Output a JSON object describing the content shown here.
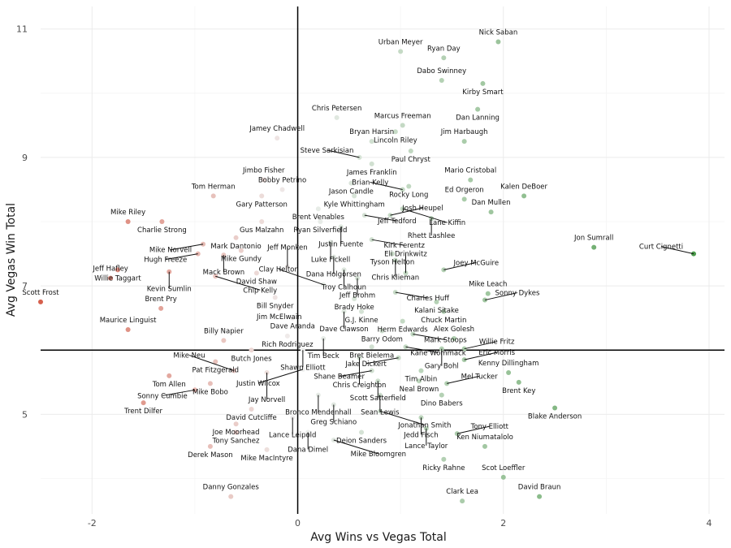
{
  "chart_data": {
    "type": "scatter",
    "xlabel": "Avg Wins vs Vegas Total",
    "ylabel": "Avg Vegas Win Total",
    "xlim": [
      -2.5,
      4.15
    ],
    "ylim": [
      3.45,
      11.35
    ],
    "x_ticks": [
      -2,
      0,
      2,
      4
    ],
    "x_tick_labels": [
      "-2",
      "0",
      "2",
      "4"
    ],
    "y_ticks": [
      5,
      7,
      9,
      11
    ],
    "y_tick_labels": [
      "5",
      "7",
      "9",
      "11"
    ],
    "reference_lines": {
      "x": 0,
      "y": 6
    },
    "grid": true,
    "color_scale": {
      "negative": "#d6604d",
      "neutral": "#f0f0f0",
      "positive": "#4a9a4a"
    },
    "points": [
      {
        "name": "Nick Saban",
        "x": 1.95,
        "y": 10.8
      },
      {
        "name": "Urban Meyer",
        "x": 1.0,
        "y": 10.65
      },
      {
        "name": "Ryan Day",
        "x": 1.42,
        "y": 10.55
      },
      {
        "name": "Dabo Swinney",
        "x": 1.4,
        "y": 10.2
      },
      {
        "name": "Kirby Smart",
        "x": 1.8,
        "y": 10.15
      },
      {
        "name": "Dan Lanning",
        "x": 1.75,
        "y": 9.75
      },
      {
        "name": "Chris Petersen",
        "x": 0.38,
        "y": 9.62
      },
      {
        "name": "Marcus Freeman",
        "x": 1.02,
        "y": 9.5
      },
      {
        "name": "Lincoln Riley",
        "x": 0.95,
        "y": 9.4
      },
      {
        "name": "Jim Harbaugh",
        "x": 1.62,
        "y": 9.25
      },
      {
        "name": "Jimbo Fisher",
        "x": -0.33,
        "y": 8.65
      },
      {
        "name": "Jamey Chadwell",
        "x": -0.2,
        "y": 9.3
      },
      {
        "name": "Bryan Harsin",
        "x": 0.72,
        "y": 9.25
      },
      {
        "name": "Paul Chryst",
        "x": 1.1,
        "y": 9.1
      },
      {
        "name": "Steve Sarkisian",
        "x": 0.6,
        "y": 9.0
      },
      {
        "name": "James Franklin",
        "x": 0.72,
        "y": 8.9
      },
      {
        "name": "Mario Cristobal",
        "x": 1.68,
        "y": 8.65
      },
      {
        "name": "Bobby Petrino",
        "x": -0.15,
        "y": 8.5
      },
      {
        "name": "Jason Candle",
        "x": 0.52,
        "y": 8.6
      },
      {
        "name": "Rocky Long",
        "x": 1.08,
        "y": 8.55
      },
      {
        "name": "Gary Patterson",
        "x": -0.35,
        "y": 8.4
      },
      {
        "name": "Kyle Whittingham",
        "x": 0.55,
        "y": 8.4
      },
      {
        "name": "Brian Kelly",
        "x": 1.02,
        "y": 8.5
      },
      {
        "name": "Ed Orgeron",
        "x": 1.62,
        "y": 8.35
      },
      {
        "name": "Kalen DeBoer",
        "x": 2.2,
        "y": 8.4
      },
      {
        "name": "Tom Herman",
        "x": -0.82,
        "y": 8.4
      },
      {
        "name": "Brent Venables",
        "x": 0.2,
        "y": 8.2
      },
      {
        "name": "Jeff Tedford",
        "x": 0.65,
        "y": 8.1
      },
      {
        "name": "Dan Mullen",
        "x": 1.88,
        "y": 8.15
      },
      {
        "name": "Lane Kiffin",
        "x": 1.02,
        "y": 8.2
      },
      {
        "name": "Mike Riley",
        "x": -1.65,
        "y": 8.0
      },
      {
        "name": "Charlie Strong",
        "x": -1.32,
        "y": 8.0
      },
      {
        "name": "Gus Malzahn",
        "x": -0.35,
        "y": 8.0
      },
      {
        "name": "Ryan Silverfield",
        "x": 0.22,
        "y": 8.0
      },
      {
        "name": "Justin Fuente",
        "x": 0.42,
        "y": 7.92
      },
      {
        "name": "Josh Heupel",
        "x": 0.9,
        "y": 8.1
      },
      {
        "name": "Rhett Lashlee",
        "x": 1.3,
        "y": 8.05
      },
      {
        "name": "Mark Dantonio",
        "x": -0.6,
        "y": 7.75
      },
      {
        "name": "Mike Norvell",
        "x": -0.92,
        "y": 7.65
      },
      {
        "name": "Kirk Ferentz",
        "x": 0.72,
        "y": 7.72
      },
      {
        "name": "Luke Fickell",
        "x": 0.32,
        "y": 7.68
      },
      {
        "name": "Jon Sumrall",
        "x": 2.88,
        "y": 7.6
      },
      {
        "name": "Curt Cignetti",
        "x": 3.85,
        "y": 7.5
      },
      {
        "name": "Mike Gundy",
        "x": -0.55,
        "y": 7.55
      },
      {
        "name": "Tyson Helton",
        "x": 0.92,
        "y": 7.5
      },
      {
        "name": "Hugh Freeze",
        "x": -0.97,
        "y": 7.5
      },
      {
        "name": "Mack Brown",
        "x": -0.72,
        "y": 7.48
      },
      {
        "name": "Dana Holgorsen",
        "x": 0.35,
        "y": 7.45
      },
      {
        "name": "Chris Klieman",
        "x": 0.95,
        "y": 7.4
      },
      {
        "name": "Willie Taggart",
        "x": -1.75,
        "y": 7.25
      },
      {
        "name": "Jeff Monken",
        "x": -0.1,
        "y": 7.3
      },
      {
        "name": "Troy Calhoun",
        "x": 0.45,
        "y": 7.25
      },
      {
        "name": "Eli Drinkwitz",
        "x": 1.05,
        "y": 7.2
      },
      {
        "name": "Joey McGuire",
        "x": 1.42,
        "y": 7.25
      },
      {
        "name": "Kevin Sumlin",
        "x": -1.25,
        "y": 7.22
      },
      {
        "name": "David Shaw",
        "x": -0.4,
        "y": 7.2
      },
      {
        "name": "Chip Kelly",
        "x": -0.8,
        "y": 7.15
      },
      {
        "name": "Jeff Hafley",
        "x": -1.82,
        "y": 7.12
      },
      {
        "name": "Jeff Brohm",
        "x": 0.58,
        "y": 7.12
      },
      {
        "name": "Clay Helton",
        "x": 0.25,
        "y": 7.02
      },
      {
        "name": "Charles Huff",
        "x": 0.95,
        "y": 6.9
      },
      {
        "name": "Mike Leach",
        "x": 1.85,
        "y": 6.88
      },
      {
        "name": "Scott Frost",
        "x": -2.5,
        "y": 6.75
      },
      {
        "name": "Bill Snyder",
        "x": -0.22,
        "y": 6.82
      },
      {
        "name": "Brady Hoke",
        "x": 0.55,
        "y": 6.8
      },
      {
        "name": "Kalani Sitake",
        "x": 1.35,
        "y": 6.75
      },
      {
        "name": "Sonny Dykes",
        "x": 1.82,
        "y": 6.78
      },
      {
        "name": "Jim McElwain",
        "x": -0.18,
        "y": 6.65
      },
      {
        "name": "Brent Pry",
        "x": -1.33,
        "y": 6.65
      },
      {
        "name": "G.J. Kinne",
        "x": 0.62,
        "y": 6.6
      },
      {
        "name": "Chuck Martin",
        "x": 1.42,
        "y": 6.6
      },
      {
        "name": "Dave Aranda",
        "x": -0.05,
        "y": 6.5
      },
      {
        "name": "Dave Clawson",
        "x": 0.45,
        "y": 6.6
      },
      {
        "name": "Herm Edwards",
        "x": 1.02,
        "y": 6.45
      },
      {
        "name": "Maurice Linguist",
        "x": -1.65,
        "y": 6.32
      },
      {
        "name": "Barry Odom",
        "x": 0.82,
        "y": 6.3
      },
      {
        "name": "Mark Stoops",
        "x": 1.12,
        "y": 6.25
      },
      {
        "name": "Alex Golesh",
        "x": 1.52,
        "y": 6.18
      },
      {
        "name": "Rich Rodriguez",
        "x": -0.1,
        "y": 6.22
      },
      {
        "name": "Tim Beck",
        "x": 0.25,
        "y": 6.18
      },
      {
        "name": "Billy Napier",
        "x": -0.72,
        "y": 6.15
      },
      {
        "name": "Bret Bielema",
        "x": 0.72,
        "y": 6.05
      },
      {
        "name": "Kane Wommack",
        "x": 1.05,
        "y": 6.05
      },
      {
        "name": "Gary Bohl",
        "x": 1.4,
        "y": 6.02
      },
      {
        "name": "Willie Fritz",
        "x": 1.62,
        "y": 6.02
      },
      {
        "name": "Butch Jones",
        "x": -0.45,
        "y": 6.0
      },
      {
        "name": "Shawn Elliott",
        "x": 0.05,
        "y": 6.0
      },
      {
        "name": "Chris Creighton",
        "x": 0.6,
        "y": 5.88
      },
      {
        "name": "Jake Dickert",
        "x": 0.98,
        "y": 5.88
      },
      {
        "name": "Eric Morris",
        "x": 1.62,
        "y": 5.85
      },
      {
        "name": "Pat Fitzgerald",
        "x": -0.8,
        "y": 5.82
      },
      {
        "name": "Justin Wilcox",
        "x": 0.05,
        "y": 5.7
      },
      {
        "name": "Shane Beamer",
        "x": 0.72,
        "y": 5.68
      },
      {
        "name": "Tim Albin",
        "x": 1.2,
        "y": 5.68
      },
      {
        "name": "Kenny Dillingham",
        "x": 2.05,
        "y": 5.65
      },
      {
        "name": "Jay Norvell",
        "x": -0.3,
        "y": 5.65
      },
      {
        "name": "Mike Neu",
        "x": -0.62,
        "y": 5.68
      },
      {
        "name": "Tom Allen",
        "x": -1.25,
        "y": 5.6
      },
      {
        "name": "Scott Satterfield",
        "x": 0.78,
        "y": 5.52
      },
      {
        "name": "Neal Brown",
        "x": 1.18,
        "y": 5.52
      },
      {
        "name": "Mel Tucker",
        "x": 1.45,
        "y": 5.48
      },
      {
        "name": "Brent Key",
        "x": 2.15,
        "y": 5.5
      },
      {
        "name": "Mike Bobo",
        "x": -0.85,
        "y": 5.48
      },
      {
        "name": "Bronco Mendenhall",
        "x": 0.2,
        "y": 5.3
      },
      {
        "name": "Sonny Cumbie",
        "x": -1.0,
        "y": 5.38
      },
      {
        "name": "Sean Lewis",
        "x": 0.8,
        "y": 5.3
      },
      {
        "name": "Dino Babers",
        "x": 1.4,
        "y": 5.3
      },
      {
        "name": "Trent Dilfer",
        "x": -1.5,
        "y": 5.18
      },
      {
        "name": "Greg Schiano",
        "x": 0.35,
        "y": 5.15
      },
      {
        "name": "David Cutcliffe",
        "x": -0.45,
        "y": 5.08
      },
      {
        "name": "Blake Anderson",
        "x": 2.5,
        "y": 5.1
      },
      {
        "name": "Jonathan Smith",
        "x": 0.8,
        "y": 5.05
      },
      {
        "name": "Lance Leipold",
        "x": -0.05,
        "y": 4.95
      },
      {
        "name": "Jedd Fisch",
        "x": 1.2,
        "y": 4.95
      },
      {
        "name": "Joe Moorhead",
        "x": -0.6,
        "y": 4.85
      },
      {
        "name": "Lance Taylor",
        "x": 1.25,
        "y": 4.78
      },
      {
        "name": "Dana Dimel",
        "x": 0.1,
        "y": 4.72
      },
      {
        "name": "Deion Sanders",
        "x": 0.62,
        "y": 4.72
      },
      {
        "name": "Tony Sanchez",
        "x": -0.6,
        "y": 4.72
      },
      {
        "name": "Tony Elliott",
        "x": 1.55,
        "y": 4.7
      },
      {
        "name": "Mike Bloomgren",
        "x": 0.35,
        "y": 4.6
      },
      {
        "name": "Ken Niumatalolo",
        "x": 1.82,
        "y": 4.5
      },
      {
        "name": "Derek Mason",
        "x": -0.85,
        "y": 4.5
      },
      {
        "name": "Mike MacIntyre",
        "x": -0.3,
        "y": 4.45
      },
      {
        "name": "Ricky Rahne",
        "x": 1.42,
        "y": 4.3
      },
      {
        "name": "Scot Loeffler",
        "x": 2.0,
        "y": 4.02
      },
      {
        "name": "Danny Gonzales",
        "x": -0.65,
        "y": 3.72
      },
      {
        "name": "David Braun",
        "x": 2.35,
        "y": 3.72
      },
      {
        "name": "Clark Lea",
        "x": 1.6,
        "y": 3.65
      }
    ]
  }
}
